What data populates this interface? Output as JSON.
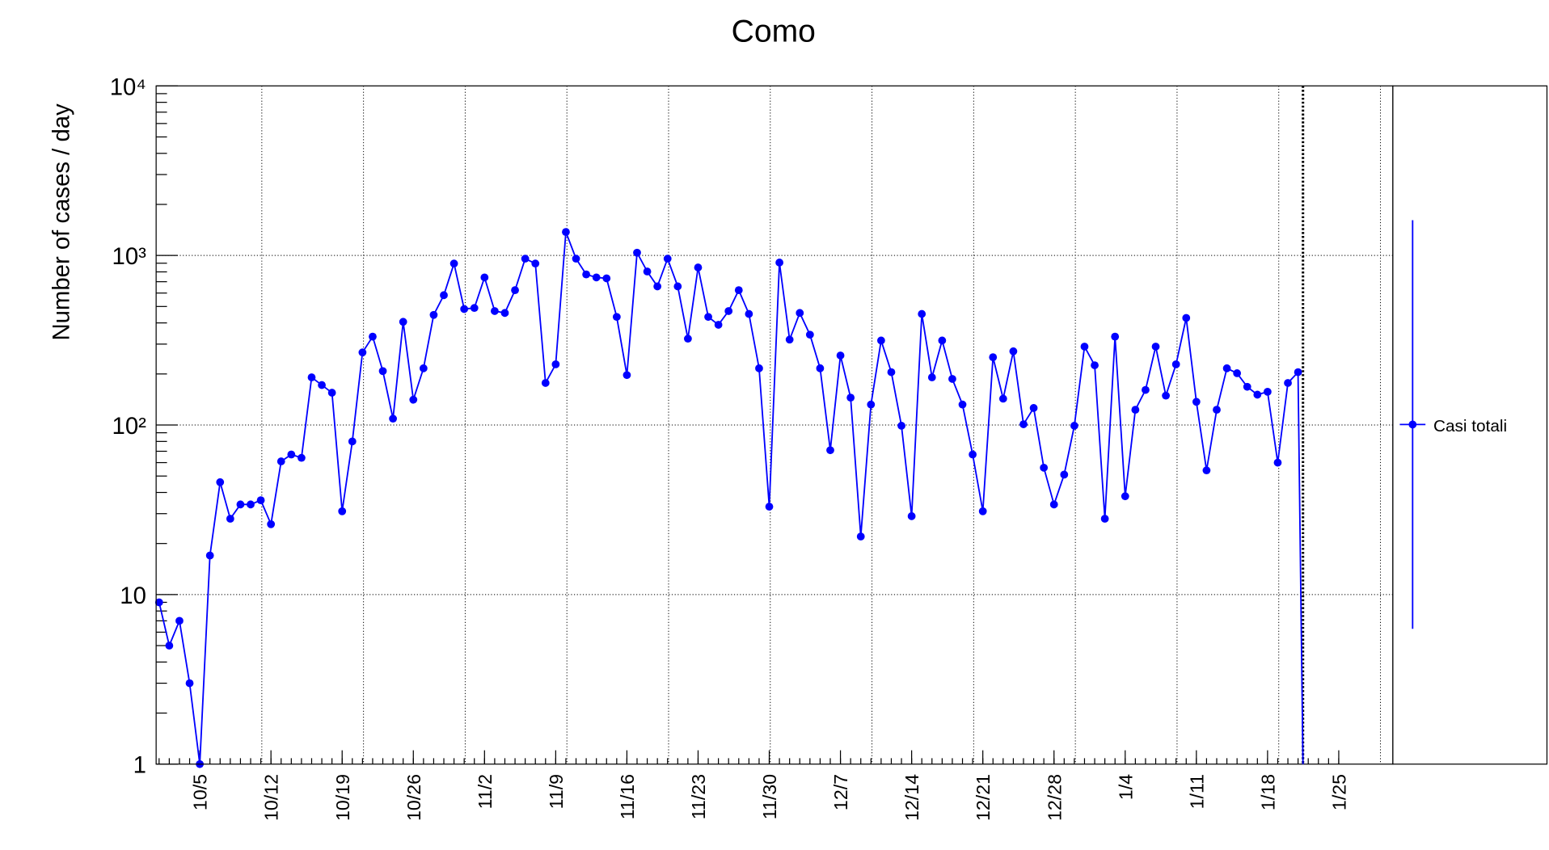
{
  "chart_data": {
    "type": "line",
    "title": "Como",
    "y_label": "Number of cases / day",
    "categories": [
      null,
      null,
      null,
      null,
      "10/5",
      null,
      null,
      null,
      null,
      null,
      null,
      "10/12",
      null,
      null,
      null,
      null,
      null,
      null,
      "10/19",
      null,
      null,
      null,
      null,
      null,
      null,
      "10/26",
      null,
      null,
      null,
      null,
      null,
      null,
      "11/2",
      null,
      null,
      null,
      null,
      null,
      null,
      "11/9",
      null,
      null,
      null,
      null,
      null,
      null,
      "11/16",
      null,
      null,
      null,
      null,
      null,
      null,
      "11/23",
      null,
      null,
      null,
      null,
      null,
      null,
      "11/30",
      null,
      null,
      null,
      null,
      null,
      null,
      "12/7",
      null,
      null,
      null,
      null,
      null,
      null,
      "12/14",
      null,
      null,
      null,
      null,
      null,
      null,
      "12/21",
      null,
      null,
      null,
      null,
      null,
      null,
      "12/28",
      null,
      null,
      null,
      null,
      null,
      null,
      "1/4",
      null,
      null,
      null,
      null,
      null,
      null,
      "1/11",
      null,
      null,
      null,
      null,
      null,
      null,
      "1/18",
      null,
      null,
      null,
      null,
      null,
      null,
      "1/25"
    ],
    "series": [
      {
        "name": "Casi totali",
        "color": "#0000ff",
        "values": [
          9,
          5,
          7,
          3,
          1,
          17,
          46,
          28,
          34,
          34,
          36,
          26,
          61,
          67,
          64,
          191,
          172,
          155,
          31,
          80,
          268,
          332,
          208,
          109,
          406,
          141,
          216,
          446,
          583,
          896,
          483,
          490,
          742,
          470,
          458,
          624,
          957,
          896,
          177,
          228,
          1375,
          957,
          773,
          742,
          733,
          434,
          197,
          1038,
          804,
          657,
          957,
          657,
          323,
          849,
          434,
          390,
          470,
          624,
          452,
          216,
          33,
          908,
          319,
          458,
          341,
          216,
          71,
          257,
          145,
          22,
          132,
          315,
          205,
          99,
          29,
          452,
          191,
          315,
          187,
          132,
          67,
          31,
          251,
          143,
          272,
          101,
          126,
          56,
          34,
          51,
          99,
          290,
          225,
          28,
          332,
          38,
          123,
          161,
          290,
          149,
          228,
          428,
          137,
          54,
          123,
          216,
          202,
          168,
          151,
          157,
          60,
          177,
          205,
          null,
          null,
          null,
          null
        ]
      }
    ],
    "ylim": [
      1,
      10000
    ],
    "log_y": true,
    "grid": true,
    "yticks": [
      1,
      10,
      {
        "value": 100,
        "label": "10²"
      },
      {
        "value": 1000,
        "label": "10³"
      },
      {
        "value": 10000,
        "label": "10⁴"
      }
    ]
  }
}
